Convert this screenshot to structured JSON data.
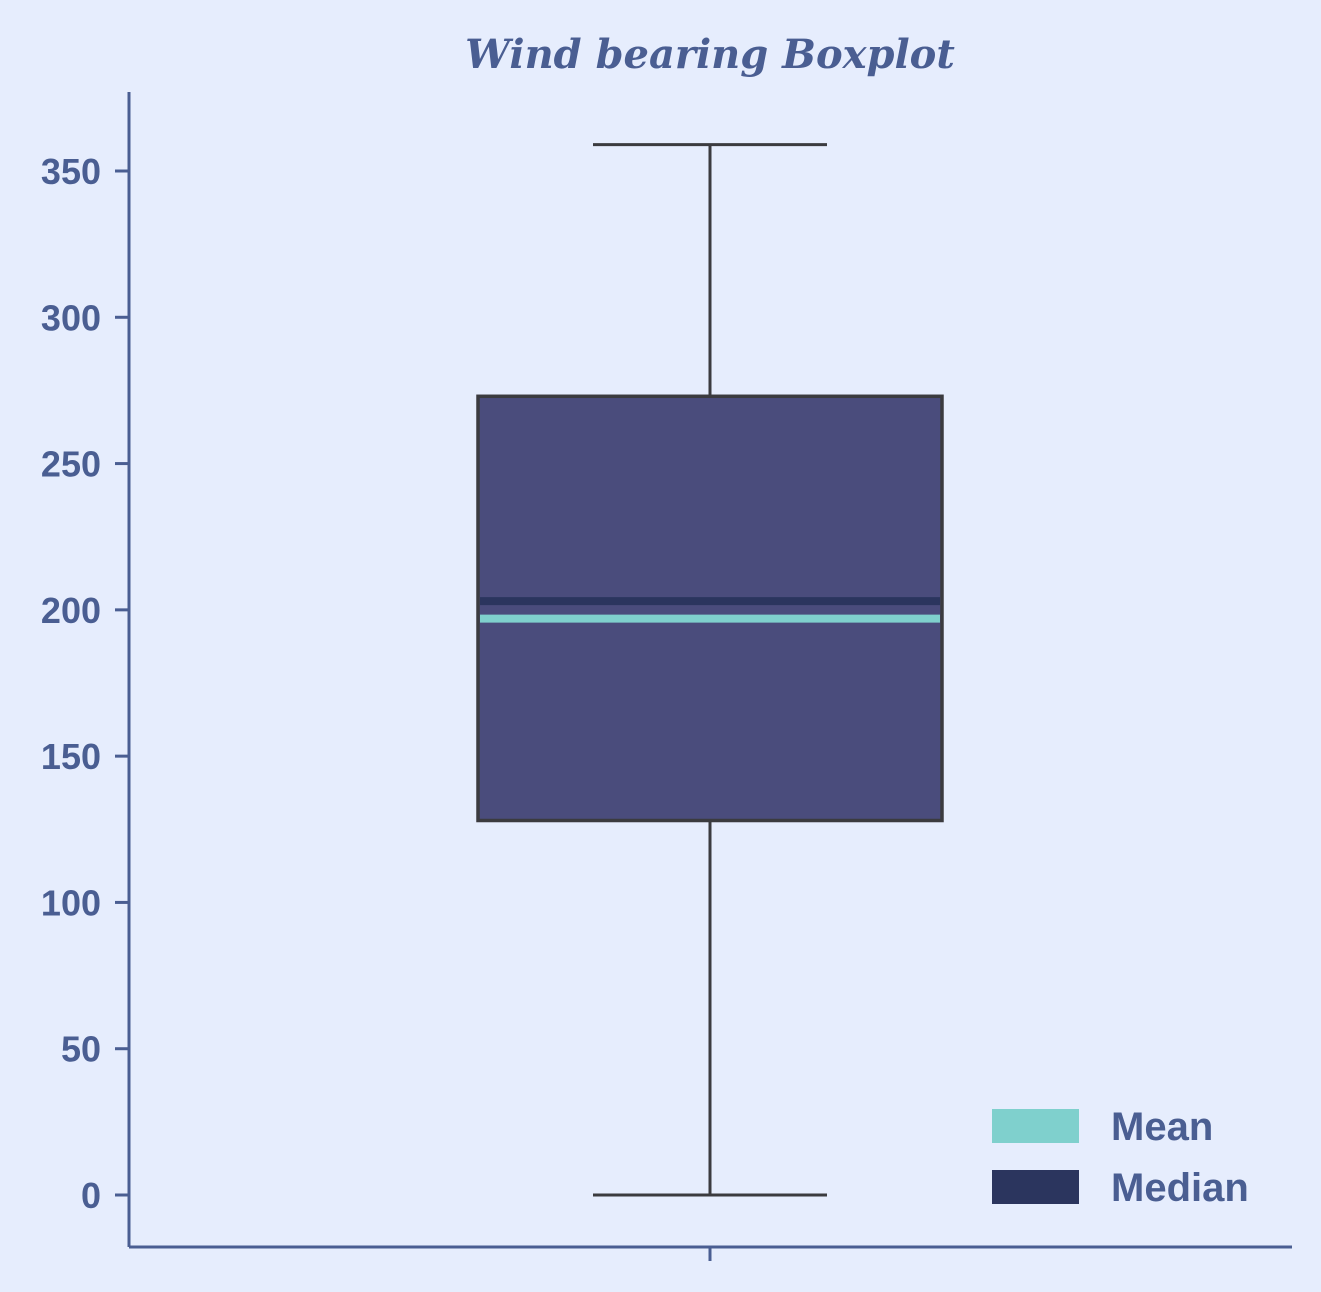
{
  "chart_data": {
    "type": "boxplot",
    "title": "Wind bearing Boxplot",
    "xlabel": "",
    "ylabel": "",
    "ylim": [
      -17.5,
      377
    ],
    "yticks": [
      0,
      50,
      100,
      150,
      200,
      250,
      300,
      350
    ],
    "ytick_labels": [
      "0",
      "50",
      "100",
      "150",
      "200",
      "250",
      "300",
      "350"
    ],
    "series": [
      {
        "whisker_low": 0,
        "q1": 128,
        "median": 203,
        "mean": 197,
        "q3": 273,
        "whisker_high": 359
      }
    ],
    "legend": {
      "position": "lower-right",
      "entries": [
        {
          "label": "Mean",
          "color": "#7fd0cd"
        },
        {
          "label": "Median",
          "color": "#2b355e"
        }
      ]
    },
    "grid": false
  },
  "colors": {
    "background": "#e6edfd",
    "axis": "#4a5e92",
    "text": "#4a5e92",
    "box_fill": "#4a4c7c",
    "box_edge": "#3b3b3f",
    "mean_line": "#7fd0cd",
    "median_line": "#2b355e"
  }
}
